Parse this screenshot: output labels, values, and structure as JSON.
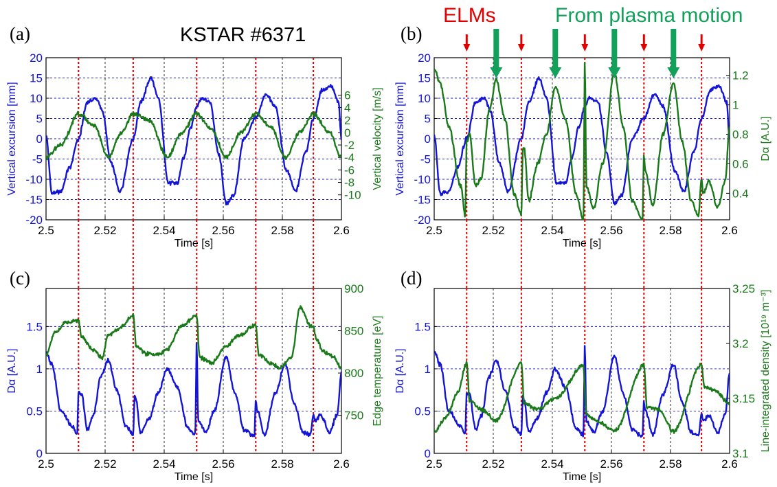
{
  "title": "KSTAR #6371",
  "colors": {
    "blue": "#1414d4",
    "green": "#1a7a1a",
    "red": "#e00000",
    "grid": "#1a1ad0",
    "axis": "#000000"
  },
  "annotations": {
    "elms": {
      "text": "ELMs",
      "color": "#e00000"
    },
    "plasma": {
      "text": "From plasma motion",
      "color": "#12a05a"
    }
  },
  "elm_times": [
    2.511,
    2.5295,
    2.551,
    2.571,
    2.5905
  ],
  "motion_times": [
    2.521,
    2.541,
    2.561,
    2.581
  ],
  "panels": [
    {
      "label": "(a)"
    },
    {
      "label": "(b)"
    },
    {
      "label": "(c)"
    },
    {
      "label": "(d)"
    }
  ],
  "chart_data": [
    {
      "panel": "(a)",
      "type": "line",
      "xlabel": "Time [s]",
      "xlim": [
        2.5,
        2.6
      ],
      "xticks": [
        "2.5",
        "2.52",
        "2.54",
        "2.56",
        "2.58",
        "2.6"
      ],
      "ylabel_left": "Vertical excursion [mm]",
      "ylim_left": [
        -20,
        20
      ],
      "yticks_left": [
        "-20",
        "-15",
        "-10",
        "-5",
        "0",
        "5",
        "10",
        "15",
        "20"
      ],
      "ylabel_right": "Vertical velocity [m/s]",
      "ylim_right": [
        -14,
        12
      ],
      "yticks_right": [
        "-10",
        "-8",
        "-6",
        "-4",
        "-2",
        "0",
        "2",
        "4",
        "6"
      ],
      "grid": true,
      "series": [
        {
          "axis": "left",
          "color": "blue",
          "x": [
            2.5,
            2.502,
            2.505,
            2.508,
            2.511,
            2.514,
            2.517,
            2.519,
            2.522,
            2.525,
            2.5295,
            2.532,
            2.5355,
            2.538,
            2.5415,
            2.5445,
            2.5465,
            2.549,
            2.551,
            2.5525,
            2.5555,
            2.5585,
            2.561,
            2.5635,
            2.567,
            2.571,
            2.5745,
            2.5775,
            2.5815,
            2.5845,
            2.588,
            2.5905,
            2.5935,
            2.5965,
            2.599,
            2.6
          ],
          "y": [
            1,
            -13.5,
            -13,
            -7,
            0,
            9,
            10,
            7,
            -6,
            -13,
            0,
            9,
            15,
            10,
            -11,
            -11,
            -5,
            3,
            8,
            10,
            9,
            -4,
            -16,
            -14,
            0,
            5,
            11,
            8,
            -8,
            -13,
            -3,
            5,
            12,
            13,
            9,
            0
          ]
        },
        {
          "axis": "right",
          "color": "green",
          "x": [
            2.5,
            2.505,
            2.511,
            2.5165,
            2.521,
            2.5255,
            2.5295,
            2.535,
            2.541,
            2.546,
            2.551,
            2.556,
            2.561,
            2.566,
            2.571,
            2.576,
            2.581,
            2.586,
            2.5905,
            2.596,
            2.6
          ],
          "y": [
            -4,
            -2,
            3,
            1,
            -4,
            0,
            3,
            2,
            -4,
            0,
            3,
            0.5,
            -4,
            0,
            3,
            1,
            -4,
            0,
            3,
            0,
            -4
          ]
        }
      ]
    },
    {
      "panel": "(b)",
      "type": "line",
      "xlabel": "Time [s]",
      "xlim": [
        2.5,
        2.6
      ],
      "xticks": [
        "2.5",
        "2.52",
        "2.54",
        "2.56",
        "2.58",
        "2.6"
      ],
      "ylabel_left": "Vertical excursion [mm]",
      "ylim_left": [
        -20,
        20
      ],
      "yticks_left": [
        "-20",
        "-15",
        "-10",
        "-5",
        "0",
        "5",
        "10",
        "15",
        "20"
      ],
      "ylabel_right": "Dα [A.U.]",
      "ylim_right": [
        0.22,
        1.32
      ],
      "yticks_right": [
        "0.4",
        "0.6",
        "0.8",
        "1",
        "1.2"
      ],
      "grid": true,
      "series": [
        {
          "axis": "left",
          "color": "blue",
          "x": [
            2.5,
            2.502,
            2.505,
            2.508,
            2.511,
            2.514,
            2.517,
            2.519,
            2.522,
            2.525,
            2.5295,
            2.532,
            2.5355,
            2.538,
            2.5415,
            2.5445,
            2.5465,
            2.549,
            2.551,
            2.5525,
            2.5555,
            2.5585,
            2.561,
            2.5635,
            2.567,
            2.571,
            2.5745,
            2.5775,
            2.5815,
            2.5845,
            2.588,
            2.5905,
            2.5935,
            2.5965,
            2.599,
            2.6
          ],
          "y": [
            1,
            -13.5,
            -13,
            -7,
            0,
            9,
            10,
            7,
            -6,
            -13,
            0,
            9,
            15,
            10,
            -11,
            -11,
            -5,
            3,
            8,
            10,
            9,
            -4,
            -16,
            -14,
            0,
            5,
            11,
            8,
            -8,
            -13,
            -3,
            5,
            12,
            13,
            9,
            0
          ]
        },
        {
          "axis": "right",
          "color": "green",
          "x": [
            2.5,
            2.502,
            2.505,
            2.509,
            2.5105,
            2.511,
            2.512,
            2.514,
            2.516,
            2.5185,
            2.521,
            2.524,
            2.527,
            2.5295,
            2.53,
            2.5305,
            2.532,
            2.535,
            2.538,
            2.541,
            2.5445,
            2.548,
            2.5505,
            2.551,
            2.5515,
            2.554,
            2.557,
            2.561,
            2.564,
            2.567,
            2.5705,
            2.571,
            2.5715,
            2.574,
            2.5775,
            2.581,
            2.584,
            2.587,
            2.5895,
            2.5905,
            2.591,
            2.593,
            2.596,
            2.5985,
            2.6
          ],
          "y": [
            1.24,
            1.15,
            0.85,
            0.45,
            0.25,
            0.75,
            0.8,
            0.45,
            0.5,
            0.95,
            1.17,
            0.9,
            0.4,
            0.25,
            0.7,
            0.7,
            0.35,
            0.6,
            0.8,
            1.12,
            0.9,
            0.4,
            0.22,
            1.3,
            0.45,
            0.3,
            0.6,
            1.22,
            0.85,
            0.35,
            0.22,
            0.65,
            0.55,
            0.32,
            0.8,
            1.15,
            0.75,
            0.35,
            0.25,
            0.5,
            0.4,
            0.48,
            0.3,
            0.48,
            0.85
          ]
        }
      ]
    },
    {
      "panel": "(c)",
      "type": "line",
      "xlabel": "Time [s]",
      "xlim": [
        2.5,
        2.6
      ],
      "xticks": [
        "2.5",
        "2.52",
        "2.54",
        "2.56",
        "2.58",
        "2.6"
      ],
      "ylabel_left": "Dα [A.U.]",
      "ylim_left": [
        0,
        1.95
      ],
      "yticks_left": [
        "0",
        "0.5",
        "1",
        "1.5"
      ],
      "ylabel_right": "Edge temperature [eV]",
      "ylim_right": [
        705,
        900
      ],
      "yticks_right": [
        "750",
        "800",
        "850",
        "900"
      ],
      "grid": true,
      "series": [
        {
          "axis": "left",
          "color": "blue",
          "x": [
            2.5,
            2.502,
            2.505,
            2.509,
            2.5105,
            2.511,
            2.512,
            2.514,
            2.516,
            2.5185,
            2.521,
            2.524,
            2.527,
            2.5295,
            2.53,
            2.5305,
            2.532,
            2.535,
            2.538,
            2.541,
            2.5445,
            2.548,
            2.5505,
            2.551,
            2.5515,
            2.554,
            2.557,
            2.561,
            2.564,
            2.567,
            2.5705,
            2.571,
            2.5715,
            2.574,
            2.5775,
            2.581,
            2.584,
            2.587,
            2.5895,
            2.5905,
            2.591,
            2.593,
            2.596,
            2.5985,
            2.6
          ],
          "y": [
            1.2,
            1.05,
            0.5,
            0.32,
            0.22,
            0.72,
            0.7,
            0.28,
            0.45,
            0.9,
            1.1,
            0.75,
            0.32,
            0.22,
            0.68,
            0.62,
            0.25,
            0.42,
            0.72,
            1.0,
            0.78,
            0.3,
            0.22,
            1.3,
            0.38,
            0.25,
            0.5,
            1.15,
            0.7,
            0.28,
            0.2,
            0.62,
            0.5,
            0.22,
            0.7,
            1.05,
            0.6,
            0.25,
            0.22,
            0.45,
            0.38,
            0.45,
            0.25,
            0.45,
            0.95
          ]
        },
        {
          "axis": "right",
          "color": "green",
          "x": [
            2.5,
            2.503,
            2.507,
            2.511,
            2.512,
            2.516,
            2.519,
            2.521,
            2.5245,
            2.5295,
            2.5305,
            2.534,
            2.538,
            2.541,
            2.546,
            2.551,
            2.552,
            2.556,
            2.561,
            2.565,
            2.571,
            2.572,
            2.576,
            2.579,
            2.583,
            2.586,
            2.5895,
            2.5905,
            2.5915,
            2.594,
            2.597,
            2.6
          ],
          "y": [
            822,
            848,
            860,
            862,
            842,
            828,
            818,
            844,
            852,
            868,
            832,
            823,
            822,
            828,
            856,
            868,
            818,
            812,
            832,
            844,
            856,
            822,
            812,
            806,
            818,
            878,
            856,
            855,
            840,
            825,
            820,
            806
          ]
        }
      ]
    },
    {
      "panel": "(d)",
      "type": "line",
      "xlabel": "Time [s]",
      "xlim": [
        2.5,
        2.6
      ],
      "xticks": [
        "2.5",
        "2.52",
        "2.54",
        "2.56",
        "2.58",
        "2.6"
      ],
      "ylabel_left": "Dα [A.U.]",
      "ylim_left": [
        0,
        1.95
      ],
      "yticks_left": [
        "0",
        "0.5",
        "1",
        "1.5"
      ],
      "ylabel_right": "Line-integrated density [10¹⁹ m⁻³]",
      "ylim_right": [
        3.1,
        3.25
      ],
      "yticks_right": [
        "3.1",
        "3.15",
        "3.2",
        "3.25"
      ],
      "grid": true,
      "series": [
        {
          "axis": "left",
          "color": "blue",
          "x": [
            2.5,
            2.502,
            2.505,
            2.509,
            2.5105,
            2.511,
            2.512,
            2.514,
            2.516,
            2.5185,
            2.521,
            2.524,
            2.527,
            2.5295,
            2.53,
            2.5305,
            2.532,
            2.535,
            2.538,
            2.541,
            2.5445,
            2.548,
            2.5505,
            2.551,
            2.5515,
            2.554,
            2.557,
            2.561,
            2.564,
            2.567,
            2.5705,
            2.571,
            2.5715,
            2.574,
            2.5775,
            2.581,
            2.584,
            2.587,
            2.5895,
            2.5905,
            2.591,
            2.593,
            2.596,
            2.5985,
            2.6
          ],
          "y": [
            1.2,
            1.05,
            0.5,
            0.32,
            0.22,
            0.72,
            0.7,
            0.28,
            0.45,
            0.9,
            1.1,
            0.75,
            0.32,
            0.22,
            0.68,
            0.62,
            0.25,
            0.42,
            0.72,
            1.0,
            0.78,
            0.3,
            0.22,
            1.3,
            0.38,
            0.25,
            0.5,
            1.15,
            0.7,
            0.28,
            0.2,
            0.62,
            0.5,
            0.22,
            0.7,
            1.05,
            0.6,
            0.25,
            0.22,
            0.45,
            0.38,
            0.45,
            0.25,
            0.45,
            0.95
          ]
        },
        {
          "axis": "right",
          "color": "green",
          "x": [
            2.5,
            2.504,
            2.508,
            2.511,
            2.512,
            2.516,
            2.521,
            2.5295,
            2.5305,
            2.535,
            2.541,
            2.5505,
            2.5515,
            2.556,
            2.561,
            2.571,
            2.572,
            2.576,
            2.581,
            2.5905,
            2.5915,
            2.595,
            2.6
          ],
          "y": [
            3.12,
            3.133,
            3.155,
            3.182,
            3.148,
            3.14,
            3.13,
            3.182,
            3.145,
            3.14,
            3.15,
            3.18,
            3.135,
            3.128,
            3.12,
            3.18,
            3.142,
            3.14,
            3.12,
            3.181,
            3.16,
            3.157,
            3.145
          ]
        }
      ]
    }
  ]
}
